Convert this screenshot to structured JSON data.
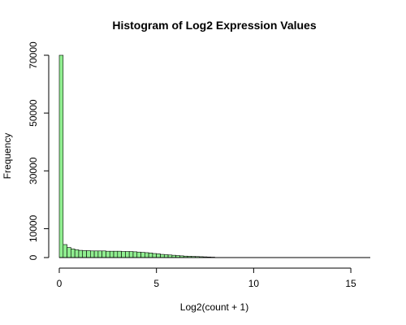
{
  "chart_data": {
    "type": "bar",
    "title": "Histogram of Log2 Expression Values",
    "xlabel": "Log2(count + 1)",
    "ylabel": "Frequency",
    "xlim": [
      0,
      16
    ],
    "ylim": [
      0,
      70000
    ],
    "x_ticks": [
      0,
      5,
      10,
      15
    ],
    "y_ticks": [
      0,
      10000,
      30000,
      50000,
      70000
    ],
    "bar_color": "#90ee90",
    "bin_width": 0.2,
    "bins_start": [
      0.0,
      0.2,
      0.4,
      0.6,
      0.8,
      1.0,
      1.2,
      1.4,
      1.6,
      1.8,
      2.0,
      2.2,
      2.4,
      2.6,
      2.8,
      3.0,
      3.2,
      3.4,
      3.6,
      3.8,
      4.0,
      4.2,
      4.4,
      4.6,
      4.8,
      5.0,
      5.2,
      5.4,
      5.6,
      5.8,
      6.0,
      6.2,
      6.4,
      6.6,
      6.8,
      7.0,
      7.2,
      7.4,
      7.6,
      7.8
    ],
    "values": [
      70000,
      4500,
      3500,
      3000,
      2700,
      2500,
      2400,
      2400,
      2300,
      2300,
      2300,
      2300,
      2200,
      2200,
      2200,
      2200,
      2100,
      2100,
      2100,
      2000,
      1900,
      1800,
      1700,
      1600,
      1400,
      1300,
      1100,
      1000,
      900,
      800,
      700,
      600,
      500,
      450,
      400,
      350,
      300,
      250,
      200,
      150
    ]
  }
}
